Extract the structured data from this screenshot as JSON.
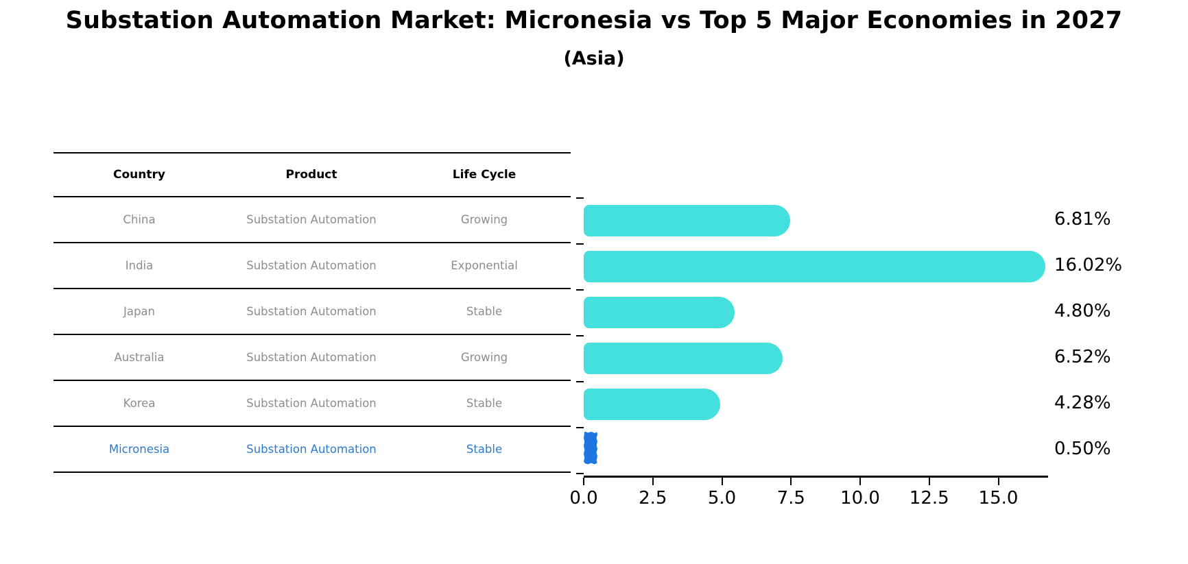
{
  "title": "Substation Automation Market: Micronesia vs Top 5 Major Economies in 2027",
  "subtitle": "(Asia)",
  "table": {
    "headers": [
      "Country",
      "Product",
      "Life Cycle"
    ],
    "rows": [
      {
        "country": "China",
        "product": "Substation Automation",
        "life_cycle": "Growing",
        "highlight": false
      },
      {
        "country": "India",
        "product": "Substation Automation",
        "life_cycle": "Exponential",
        "highlight": false
      },
      {
        "country": "Japan",
        "product": "Substation Automation",
        "life_cycle": "Stable",
        "highlight": false
      },
      {
        "country": "Australia",
        "product": "Substation Automation",
        "life_cycle": "Growing",
        "highlight": false
      },
      {
        "country": "Korea",
        "product": "Substation Automation",
        "life_cycle": "Stable",
        "highlight": false
      },
      {
        "country": "Micronesia",
        "product": "Substation Automation",
        "life_cycle": "Stable",
        "highlight": true
      }
    ]
  },
  "chart_data": {
    "type": "bar",
    "orientation": "horizontal",
    "title": "Substation Automation Market: Micronesia vs Top 5 Major Economies in 2027 (Asia)",
    "categories": [
      "China",
      "India",
      "Japan",
      "Australia",
      "Korea",
      "Micronesia"
    ],
    "values": [
      6.81,
      16.02,
      4.8,
      6.52,
      4.28,
      0.5
    ],
    "value_labels": [
      "6.81%",
      "16.02%",
      "4.80%",
      "6.52%",
      "4.28%",
      "0.50%"
    ],
    "x_ticks": [
      0.0,
      2.5,
      5.0,
      7.5,
      10.0,
      12.5,
      15.0
    ],
    "x_tick_labels": [
      "0.0",
      "2.5",
      "5.0",
      "7.5",
      "10.0",
      "12.5",
      "15.0"
    ],
    "xlim": [
      0,
      16.8
    ],
    "xlabel": "",
    "ylabel": "",
    "grid": false,
    "legend": false,
    "bar_color": "#43e0de",
    "highlight_bar_color": "#1e76e3",
    "highlight_index": 5
  },
  "colors": {
    "row_text": "#8d8d8d",
    "highlight_text": "#2e7bce",
    "header_text": "#000000",
    "axis": "#000000"
  }
}
